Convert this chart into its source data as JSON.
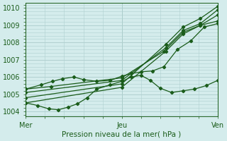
{
  "title": "Pression niveau de la mer( hPa )",
  "background_color": "#d4ecec",
  "grid_color": "#b0d0d0",
  "line_color": "#1a5c1a",
  "xlim": [
    0.0,
    1.0
  ],
  "ylim": [
    1003.7,
    1010.3
  ],
  "yticks": [
    1004,
    1005,
    1006,
    1007,
    1008,
    1009,
    1010
  ],
  "xtick_labels": [
    "Mer",
    "Jeu",
    "Ven"
  ],
  "xtick_positions": [
    0.0,
    0.5,
    1.0
  ],
  "vlines": [
    0.0,
    0.5,
    1.0
  ],
  "series": [
    {
      "x": [
        0.0,
        0.13,
        0.5,
        0.72,
        0.82,
        0.91,
        1.0
      ],
      "y": [
        1005.3,
        1005.45,
        1005.95,
        1007.5,
        1008.6,
        1009.0,
        1009.6
      ],
      "marker": "D",
      "markersize": 2.2,
      "lw": 0.9
    },
    {
      "x": [
        0.0,
        0.5,
        0.73,
        0.82,
        0.91,
        1.0
      ],
      "y": [
        1005.1,
        1005.8,
        1007.7,
        1008.7,
        1009.1,
        1009.9
      ],
      "marker": "D",
      "markersize": 2.2,
      "lw": 0.9
    },
    {
      "x": [
        0.0,
        0.5,
        0.73,
        0.82,
        0.91,
        1.0
      ],
      "y": [
        1004.8,
        1005.6,
        1007.9,
        1008.9,
        1009.4,
        1010.1
      ],
      "marker": "D",
      "markersize": 2.2,
      "lw": 0.9
    },
    {
      "x": [
        0.0,
        0.5,
        0.73,
        0.82,
        0.91,
        1.0
      ],
      "y": [
        1004.5,
        1005.4,
        1007.5,
        1008.5,
        1009.0,
        1009.25
      ],
      "marker": "D",
      "markersize": 2.2,
      "lw": 0.9
    },
    {
      "x": [
        0.0,
        0.08,
        0.14,
        0.19,
        0.25,
        0.3,
        0.37,
        0.44,
        0.5,
        0.55,
        0.6,
        0.66,
        0.72,
        0.79,
        0.86,
        0.93,
        1.0
      ],
      "y": [
        1005.3,
        1005.55,
        1005.75,
        1005.9,
        1006.0,
        1005.85,
        1005.75,
        1005.8,
        1006.05,
        1006.2,
        1006.3,
        1006.35,
        1006.6,
        1007.6,
        1008.1,
        1008.9,
        1009.1
      ],
      "marker": "D",
      "markersize": 2.2,
      "lw": 0.9
    },
    {
      "x": [
        0.0,
        0.06,
        0.12,
        0.17,
        0.22,
        0.27,
        0.32,
        0.37,
        0.44,
        0.5,
        0.55,
        0.6,
        0.65,
        0.7,
        0.76,
        0.82,
        0.88,
        0.94,
        1.0
      ],
      "y": [
        1004.5,
        1004.35,
        1004.15,
        1004.1,
        1004.25,
        1004.45,
        1004.8,
        1005.3,
        1005.55,
        1005.75,
        1006.0,
        1006.1,
        1005.8,
        1005.35,
        1005.1,
        1005.2,
        1005.3,
        1005.5,
        1005.8
      ],
      "marker": "D",
      "markersize": 2.2,
      "lw": 0.9
    }
  ]
}
